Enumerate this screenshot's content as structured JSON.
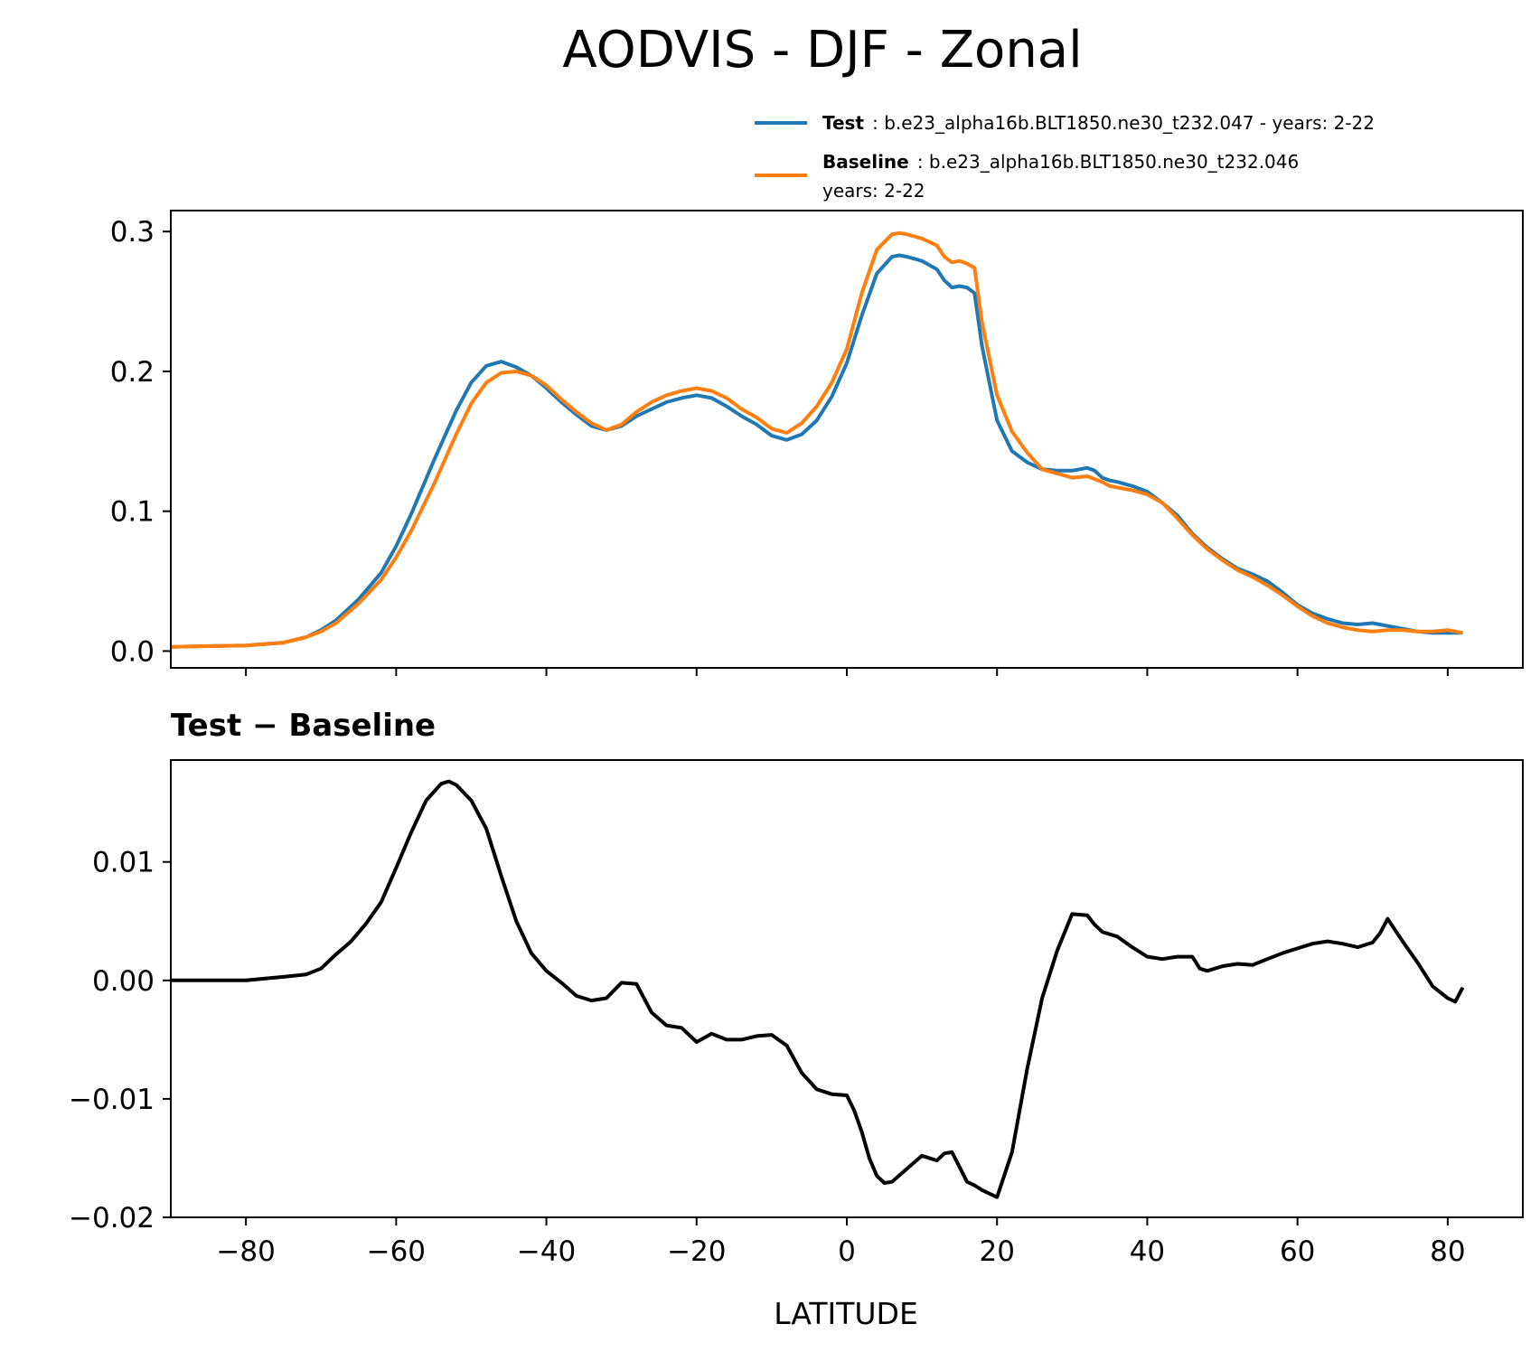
{
  "chart_data": [
    {
      "type": "line",
      "title": "AODVIS - DJF - Zonal",
      "xlabel": "",
      "ylabel": "",
      "xlim": [
        -90,
        90
      ],
      "ylim": [
        -0.012,
        0.315
      ],
      "yticks": [
        0.0,
        0.1,
        0.2,
        0.3
      ],
      "ytick_labels": [
        "0.0",
        "0.1",
        "0.2",
        "0.3"
      ],
      "xticks": [
        -80,
        -60,
        -40,
        -20,
        0,
        20,
        40,
        60,
        80
      ],
      "legend": {
        "placement": "above-right",
        "entries": [
          {
            "name": "Test",
            "desc": ": b.e23_alpha16b.BLT1850.ne30_t232.047 - years: 2-22",
            "color": "#1f77b4"
          },
          {
            "name": "Baseline",
            "desc": ": b.e23_alpha16b.BLT1850.ne30_t232.046",
            "desc2": "years: 2-22",
            "color": "#ff7f0e"
          }
        ]
      },
      "series": [
        {
          "name": "Test",
          "color": "#1f77b4",
          "x": [
            -90,
            -80,
            -75,
            -72,
            -70,
            -68,
            -65,
            -62,
            -60,
            -58,
            -55,
            -52,
            -50,
            -48,
            -46,
            -44,
            -42,
            -40,
            -38,
            -36,
            -34,
            -32,
            -30,
            -28,
            -26,
            -24,
            -22,
            -20,
            -18,
            -16,
            -14,
            -12,
            -10,
            -8,
            -6,
            -4,
            -2,
            0,
            2,
            4,
            6,
            7,
            8,
            10,
            12,
            13,
            14,
            15,
            16,
            17,
            18,
            20,
            22,
            24,
            26,
            28,
            30,
            32,
            33,
            34,
            35,
            36,
            38,
            40,
            42,
            44,
            46,
            48,
            50,
            52,
            54,
            56,
            58,
            60,
            62,
            64,
            66,
            68,
            70,
            72,
            74,
            76,
            78,
            80,
            82
          ],
          "values": [
            0.003,
            0.004,
            0.006,
            0.01,
            0.015,
            0.022,
            0.037,
            0.056,
            0.075,
            0.098,
            0.136,
            0.172,
            0.192,
            0.204,
            0.207,
            0.203,
            0.197,
            0.188,
            0.178,
            0.169,
            0.161,
            0.158,
            0.161,
            0.168,
            0.173,
            0.178,
            0.181,
            0.183,
            0.181,
            0.175,
            0.168,
            0.162,
            0.154,
            0.151,
            0.155,
            0.165,
            0.182,
            0.206,
            0.24,
            0.27,
            0.282,
            0.283,
            0.282,
            0.279,
            0.273,
            0.265,
            0.26,
            0.261,
            0.26,
            0.256,
            0.218,
            0.165,
            0.143,
            0.135,
            0.13,
            0.129,
            0.129,
            0.131,
            0.129,
            0.124,
            0.122,
            0.121,
            0.118,
            0.114,
            0.106,
            0.097,
            0.084,
            0.074,
            0.066,
            0.059,
            0.055,
            0.05,
            0.042,
            0.033,
            0.027,
            0.023,
            0.02,
            0.019,
            0.02,
            0.018,
            0.016,
            0.014,
            0.013,
            0.013,
            0.013
          ]
        },
        {
          "name": "Baseline",
          "color": "#ff7f0e",
          "x": [
            -90,
            -80,
            -75,
            -72,
            -70,
            -68,
            -65,
            -62,
            -60,
            -58,
            -55,
            -52,
            -50,
            -48,
            -46,
            -44,
            -42,
            -40,
            -38,
            -36,
            -34,
            -32,
            -30,
            -28,
            -26,
            -24,
            -22,
            -20,
            -18,
            -16,
            -14,
            -12,
            -10,
            -8,
            -6,
            -4,
            -2,
            0,
            2,
            4,
            6,
            7,
            8,
            10,
            12,
            13,
            14,
            15,
            16,
            17,
            18,
            20,
            22,
            24,
            26,
            28,
            30,
            32,
            33,
            34,
            35,
            36,
            38,
            40,
            42,
            44,
            46,
            48,
            50,
            52,
            54,
            56,
            58,
            60,
            62,
            64,
            66,
            68,
            70,
            72,
            74,
            76,
            78,
            80,
            82
          ],
          "values": [
            0.003,
            0.004,
            0.006,
            0.01,
            0.014,
            0.02,
            0.034,
            0.051,
            0.067,
            0.086,
            0.119,
            0.155,
            0.177,
            0.192,
            0.199,
            0.2,
            0.197,
            0.19,
            0.18,
            0.171,
            0.163,
            0.158,
            0.162,
            0.171,
            0.178,
            0.183,
            0.186,
            0.188,
            0.186,
            0.181,
            0.173,
            0.167,
            0.159,
            0.156,
            0.163,
            0.175,
            0.192,
            0.216,
            0.256,
            0.287,
            0.298,
            0.299,
            0.298,
            0.295,
            0.29,
            0.282,
            0.278,
            0.279,
            0.277,
            0.274,
            0.235,
            0.183,
            0.157,
            0.142,
            0.13,
            0.127,
            0.124,
            0.125,
            0.123,
            0.121,
            0.118,
            0.117,
            0.115,
            0.112,
            0.106,
            0.095,
            0.083,
            0.073,
            0.065,
            0.058,
            0.053,
            0.047,
            0.04,
            0.032,
            0.025,
            0.02,
            0.017,
            0.015,
            0.014,
            0.015,
            0.015,
            0.014,
            0.014,
            0.015,
            0.013
          ]
        }
      ]
    },
    {
      "type": "line",
      "title": "Test − Baseline",
      "xlabel": "LATITUDE",
      "ylabel": "",
      "xlim": [
        -90,
        90
      ],
      "ylim": [
        -0.02,
        0.0186
      ],
      "yticks": [
        -0.02,
        -0.01,
        0.0,
        0.01
      ],
      "ytick_labels": [
        "−0.02",
        "−0.01",
        "0.00",
        "0.01"
      ],
      "xticks": [
        -80,
        -60,
        -40,
        -20,
        0,
        20,
        40,
        60,
        80
      ],
      "xtick_labels": [
        "−80",
        "−60",
        "−40",
        "−20",
        "0",
        "20",
        "40",
        "60",
        "80"
      ],
      "series": [
        {
          "name": "Test − Baseline",
          "color": "#000000",
          "x": [
            -90,
            -80,
            -75,
            -72,
            -70,
            -68,
            -66,
            -64,
            -62,
            -60,
            -58,
            -56,
            -54,
            -53,
            -52,
            -50,
            -48,
            -46,
            -44,
            -42,
            -40,
            -38,
            -36,
            -34,
            -32,
            -30,
            -28,
            -26,
            -24,
            -22,
            -20,
            -18,
            -16,
            -14,
            -12,
            -10,
            -8,
            -6,
            -4,
            -2,
            0,
            1,
            2,
            3,
            4,
            5,
            6,
            8,
            10,
            12,
            13,
            14,
            16,
            17,
            18,
            19,
            20,
            22,
            24,
            26,
            28,
            30,
            32,
            33,
            34,
            36,
            38,
            40,
            42,
            44,
            46,
            47,
            48,
            50,
            52,
            54,
            56,
            58,
            60,
            62,
            64,
            66,
            68,
            70,
            71,
            72,
            74,
            76,
            78,
            80,
            81,
            82
          ],
          "values": [
            0.0,
            0.0,
            0.0003,
            0.0005,
            0.001,
            0.0022,
            0.0033,
            0.0048,
            0.0066,
            0.0095,
            0.0125,
            0.0152,
            0.0166,
            0.0168,
            0.0165,
            0.0152,
            0.0128,
            0.0088,
            0.005,
            0.0023,
            0.0008,
            -0.0002,
            -0.0013,
            -0.0017,
            -0.0015,
            -0.0002,
            -0.0003,
            -0.0027,
            -0.0038,
            -0.004,
            -0.0052,
            -0.0045,
            -0.005,
            -0.005,
            -0.0047,
            -0.0046,
            -0.0055,
            -0.0078,
            -0.0092,
            -0.0096,
            -0.0097,
            -0.011,
            -0.0128,
            -0.015,
            -0.0165,
            -0.0171,
            -0.017,
            -0.0159,
            -0.0148,
            -0.0152,
            -0.0146,
            -0.0145,
            -0.017,
            -0.0173,
            -0.0177,
            -0.018,
            -0.0183,
            -0.0145,
            -0.0075,
            -0.0015,
            0.0025,
            0.0056,
            0.0055,
            0.0047,
            0.0041,
            0.0037,
            0.0028,
            0.002,
            0.0018,
            0.002,
            0.002,
            0.001,
            0.0008,
            0.0012,
            0.0014,
            0.0013,
            0.0018,
            0.0023,
            0.0027,
            0.0031,
            0.0033,
            0.0031,
            0.0028,
            0.0032,
            0.004,
            0.0052,
            0.0033,
            0.0015,
            -0.0005,
            -0.0015,
            -0.0018,
            -0.0006
          ]
        }
      ]
    }
  ]
}
